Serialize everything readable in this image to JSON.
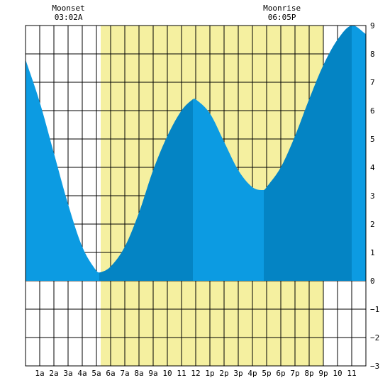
{
  "chart_data": {
    "type": "area",
    "title": "",
    "xlabel": "",
    "ylabel": "",
    "x_ticks": [
      "1a",
      "2a",
      "3a",
      "4a",
      "5a",
      "6a",
      "7a",
      "8a",
      "9a",
      "10",
      "11",
      "12",
      "1p",
      "2p",
      "3p",
      "4p",
      "5p",
      "6p",
      "7p",
      "8p",
      "9p",
      "10",
      "11"
    ],
    "xlim": [
      0,
      24
    ],
    "ylim": [
      -3,
      9
    ],
    "y_ticks": [
      "9",
      "8",
      "7",
      "6",
      "5",
      "4",
      "3",
      "2",
      "1",
      "0",
      "−1",
      "−2",
      "−3"
    ],
    "grid": true,
    "daylight": {
      "start": 5.3,
      "end": 21.0,
      "color": "#f5f0a0"
    },
    "colors": {
      "tide_light": "#0c9be2",
      "tide_dark": "#0484c4",
      "grid": "#000000"
    },
    "dark_bands": [
      [
        5.2,
        11.8
      ],
      [
        16.8,
        23.0
      ]
    ],
    "extremes": [
      {
        "x": 5.3,
        "y": 0.3
      },
      {
        "x": 11.8,
        "y": 6.4
      },
      {
        "x": 16.8,
        "y": 3.2
      },
      {
        "x": 23.0,
        "y": 9.0
      }
    ],
    "series": [
      {
        "x": [
          0,
          1,
          2,
          3,
          4,
          5,
          5.3,
          6,
          7,
          8,
          9,
          10,
          11,
          11.8,
          12,
          13,
          14,
          15,
          16,
          16.8,
          17,
          18,
          19,
          20,
          21,
          22,
          23,
          24
        ],
        "values": [
          7.8,
          6.3,
          4.5,
          2.7,
          1.2,
          0.35,
          0.3,
          0.5,
          1.2,
          2.4,
          3.9,
          5.1,
          6.0,
          6.4,
          6.4,
          5.9,
          4.9,
          3.9,
          3.3,
          3.2,
          3.3,
          4.0,
          5.1,
          6.4,
          7.6,
          8.5,
          9.0,
          8.7
        ]
      }
    ],
    "annotations": [
      {
        "label": "Moonset",
        "time": "03:02A",
        "x": 3.03
      },
      {
        "label": "Moonrise",
        "time": "06:05P",
        "x": 18.08
      }
    ]
  }
}
